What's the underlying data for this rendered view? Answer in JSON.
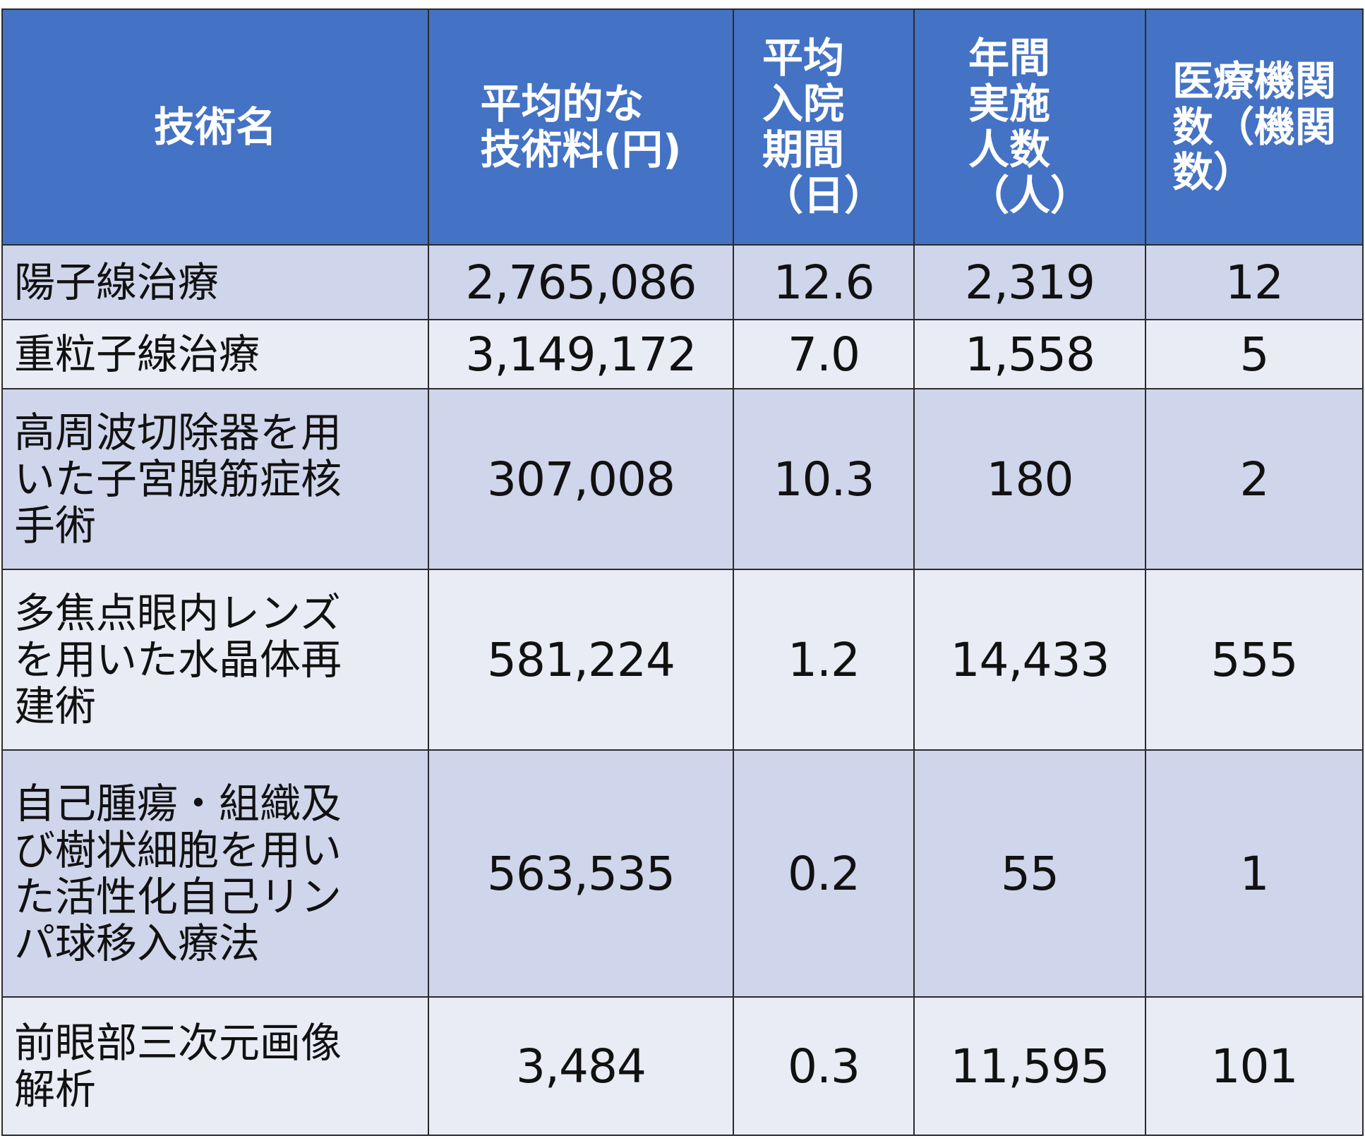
{
  "table": {
    "headers": [
      "技術名",
      "平均的な\n技術料(円)",
      "平均\n入院\n期間\n（日）",
      "年間\n実施\n人数\n（人）",
      "医療機関\n数（機関\n数）"
    ],
    "rows": [
      {
        "name": "陽子線治療",
        "fee": "2,765,086",
        "days": "12.6",
        "patients": "2,319",
        "facilities": "12"
      },
      {
        "name": "重粒子線治療",
        "fee": "3,149,172",
        "days": "7.0",
        "patients": "1,558",
        "facilities": "5"
      },
      {
        "name": "高周波切除器を用\nいた子宮腺筋症核\n手術",
        "fee": "307,008",
        "days": "10.3",
        "patients": "180",
        "facilities": "2"
      },
      {
        "name": "多焦点眼内レンズ\nを用いた水晶体再\n建術",
        "fee": "581,224",
        "days": "1.2",
        "patients": "14,433",
        "facilities": "555"
      },
      {
        "name": "自己腫瘍・組織及\nび樹状細胞を用い\nた活性化自己リン\nパ球移入療法",
        "fee": "563,535",
        "days": "0.2",
        "patients": "55",
        "facilities": "1"
      },
      {
        "name": "前眼部三次元画像\n解析",
        "fee": "3,484",
        "days": "0.3",
        "patients": "11,595",
        "facilities": "101"
      }
    ]
  }
}
